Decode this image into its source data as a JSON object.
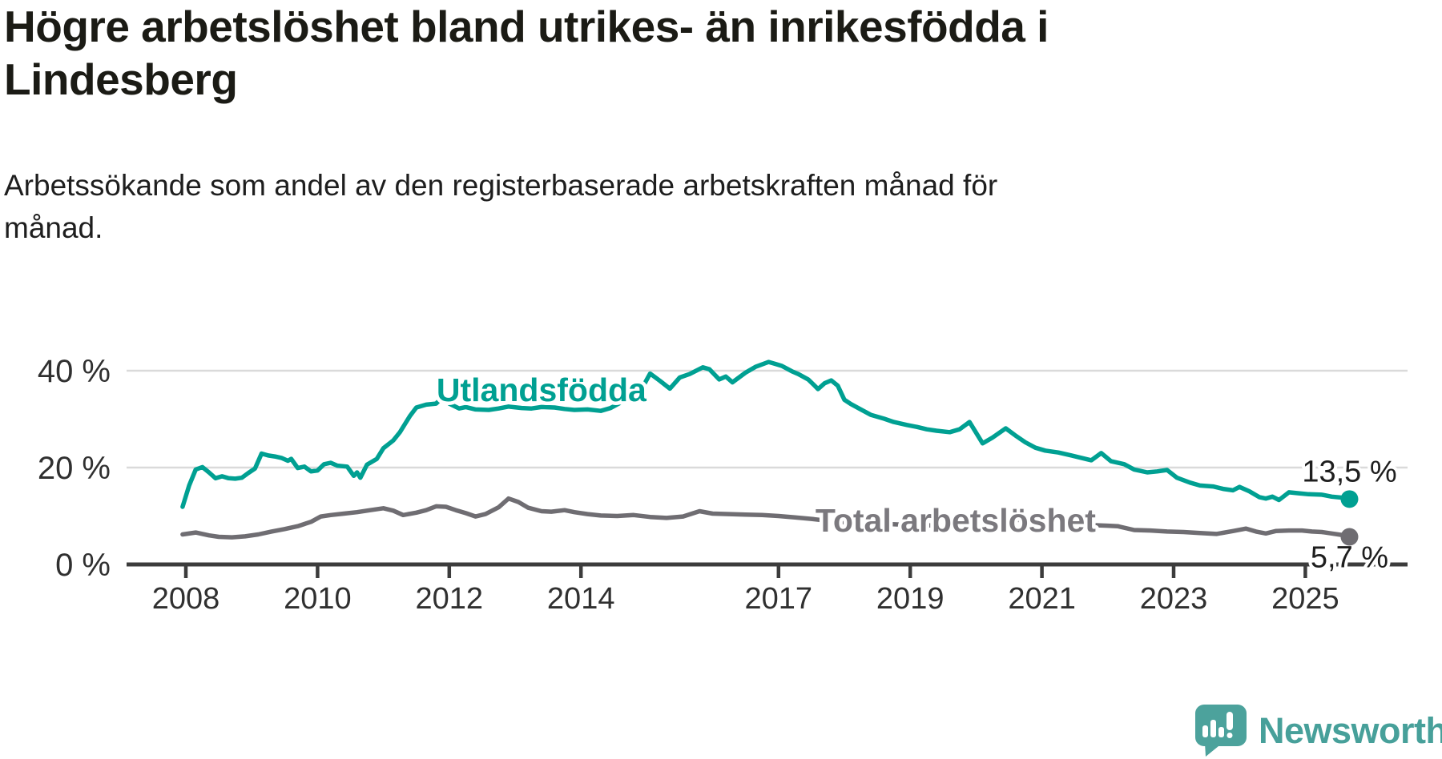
{
  "header": {
    "title": "Högre arbetslöshet bland utrikes- än inrikesfödda i Lindesberg",
    "title_lines": [
      "Högre arbetslöshet bland utrikes- än inrikesfödda i",
      "Lindesberg"
    ],
    "subtitle": "Arbetssökande som andel av den registerbaserade arbetskraften månad för månad.",
    "subtitle_lines": [
      "Arbetssökande som andel av den registerbaserade arbetskraften månad för",
      "månad."
    ]
  },
  "footer": {
    "brand": "Newsworthy"
  },
  "colors": {
    "title_text": "#1b1b15",
    "grid": "#dadada",
    "axis": "#3c3c3c",
    "axis_text": "#303030",
    "value_label_text": "#1e1e1e",
    "utlandsfodda_teal": "#00a092",
    "total_gray": "#6f6d72",
    "total_label_gray": "#7b797e",
    "logo_teal": "#4ca29c",
    "halo": "#ffffff"
  },
  "chart_data": {
    "type": "line",
    "title": "Högre arbetslöshet bland utrikes- än inrikesfödda i Lindesberg",
    "subtitle": "Arbetssökande som andel av den registerbaserade arbetskraften månad för månad.",
    "unit": "%",
    "grid": true,
    "legend_position": "inline-labels",
    "x_axis": {
      "range": [
        2007.9,
        2025.9
      ],
      "ticks": [
        {
          "value": 2008,
          "label": "2008"
        },
        {
          "value": 2010,
          "label": "2010"
        },
        {
          "value": 2012,
          "label": "2012"
        },
        {
          "value": 2014,
          "label": "2014"
        },
        {
          "value": 2017,
          "label": "2017"
        },
        {
          "value": 2019,
          "label": "2019"
        },
        {
          "value": 2021,
          "label": "2021"
        },
        {
          "value": 2023,
          "label": "2023"
        },
        {
          "value": 2025,
          "label": "2025"
        }
      ]
    },
    "y_axis": {
      "range": [
        0,
        52
      ],
      "ticks": [
        {
          "value": 0,
          "label": "0 %"
        },
        {
          "value": 20,
          "label": "20 %"
        },
        {
          "value": 40,
          "label": "40 %"
        }
      ]
    },
    "series": [
      {
        "id": "utlandsfodda",
        "name": "Utlandsfödda",
        "color": "#00a092",
        "label_color": "#00a092",
        "label_anchor": {
          "x": 2013.4,
          "y": 36.0
        },
        "end_label": "13,5 %",
        "end_value": 13.5,
        "end_label_position": "above",
        "points": [
          [
            2007.95,
            11.9
          ],
          [
            2008.05,
            16.3
          ],
          [
            2008.15,
            19.6
          ],
          [
            2008.25,
            20.1
          ],
          [
            2008.35,
            19.0
          ],
          [
            2008.45,
            17.8
          ],
          [
            2008.55,
            18.2
          ],
          [
            2008.65,
            17.8
          ],
          [
            2008.75,
            17.7
          ],
          [
            2008.85,
            17.9
          ],
          [
            2008.95,
            18.9
          ],
          [
            2009.05,
            19.8
          ],
          [
            2009.15,
            22.9
          ],
          [
            2009.25,
            22.5
          ],
          [
            2009.35,
            22.3
          ],
          [
            2009.45,
            22.0
          ],
          [
            2009.55,
            21.4
          ],
          [
            2009.6,
            21.8
          ],
          [
            2009.7,
            19.9
          ],
          [
            2009.8,
            20.2
          ],
          [
            2009.9,
            19.2
          ],
          [
            2010.0,
            19.4
          ],
          [
            2010.1,
            20.7
          ],
          [
            2010.2,
            21.0
          ],
          [
            2010.3,
            20.4
          ],
          [
            2010.45,
            20.2
          ],
          [
            2010.55,
            18.3
          ],
          [
            2010.6,
            19.0
          ],
          [
            2010.65,
            17.9
          ],
          [
            2010.75,
            20.6
          ],
          [
            2010.9,
            21.8
          ],
          [
            2011.0,
            24.0
          ],
          [
            2011.15,
            25.6
          ],
          [
            2011.25,
            27.3
          ],
          [
            2011.4,
            30.6
          ],
          [
            2011.5,
            32.4
          ],
          [
            2011.65,
            33.0
          ],
          [
            2011.8,
            33.2
          ],
          [
            2011.9,
            34.6
          ],
          [
            2012.0,
            33.2
          ],
          [
            2012.15,
            32.2
          ],
          [
            2012.25,
            32.5
          ],
          [
            2012.4,
            32.0
          ],
          [
            2012.6,
            31.9
          ],
          [
            2012.75,
            32.2
          ],
          [
            2012.9,
            32.6
          ],
          [
            2013.1,
            32.3
          ],
          [
            2013.25,
            32.2
          ],
          [
            2013.4,
            32.5
          ],
          [
            2013.6,
            32.4
          ],
          [
            2013.75,
            32.1
          ],
          [
            2013.9,
            31.9
          ],
          [
            2014.1,
            32.0
          ],
          [
            2014.3,
            31.7
          ],
          [
            2014.45,
            32.3
          ],
          [
            2014.6,
            33.4
          ],
          [
            2014.75,
            34.6
          ],
          [
            2014.9,
            35.7
          ],
          [
            2015.05,
            39.4
          ],
          [
            2015.2,
            37.9
          ],
          [
            2015.35,
            36.3
          ],
          [
            2015.5,
            38.6
          ],
          [
            2015.65,
            39.3
          ],
          [
            2015.85,
            40.7
          ],
          [
            2015.95,
            40.3
          ],
          [
            2016.1,
            38.2
          ],
          [
            2016.2,
            38.8
          ],
          [
            2016.3,
            37.6
          ],
          [
            2016.5,
            39.6
          ],
          [
            2016.65,
            40.8
          ],
          [
            2016.85,
            41.8
          ],
          [
            2016.95,
            41.4
          ],
          [
            2017.05,
            41.0
          ],
          [
            2017.2,
            39.9
          ],
          [
            2017.3,
            39.3
          ],
          [
            2017.45,
            38.2
          ],
          [
            2017.55,
            36.9
          ],
          [
            2017.6,
            36.2
          ],
          [
            2017.7,
            37.4
          ],
          [
            2017.8,
            38.0
          ],
          [
            2017.9,
            36.9
          ],
          [
            2018.0,
            34.0
          ],
          [
            2018.1,
            33.1
          ],
          [
            2018.25,
            32.0
          ],
          [
            2018.4,
            30.9
          ],
          [
            2018.6,
            30.1
          ],
          [
            2018.75,
            29.4
          ],
          [
            2018.95,
            28.8
          ],
          [
            2019.1,
            28.4
          ],
          [
            2019.25,
            27.9
          ],
          [
            2019.4,
            27.6
          ],
          [
            2019.6,
            27.3
          ],
          [
            2019.75,
            27.9
          ],
          [
            2019.9,
            29.4
          ],
          [
            2020.1,
            25.0
          ],
          [
            2020.25,
            26.2
          ],
          [
            2020.45,
            28.1
          ],
          [
            2020.6,
            26.6
          ],
          [
            2020.75,
            25.2
          ],
          [
            2020.9,
            24.1
          ],
          [
            2021.05,
            23.5
          ],
          [
            2021.25,
            23.1
          ],
          [
            2021.45,
            22.5
          ],
          [
            2021.6,
            22.0
          ],
          [
            2021.75,
            21.5
          ],
          [
            2021.9,
            23.0
          ],
          [
            2022.05,
            21.3
          ],
          [
            2022.25,
            20.7
          ],
          [
            2022.4,
            19.6
          ],
          [
            2022.6,
            19.0
          ],
          [
            2022.75,
            19.2
          ],
          [
            2022.9,
            19.5
          ],
          [
            2023.05,
            17.9
          ],
          [
            2023.25,
            16.9
          ],
          [
            2023.4,
            16.3
          ],
          [
            2023.6,
            16.1
          ],
          [
            2023.75,
            15.6
          ],
          [
            2023.9,
            15.3
          ],
          [
            2024.0,
            16.0
          ],
          [
            2024.15,
            15.1
          ],
          [
            2024.3,
            13.9
          ],
          [
            2024.4,
            13.6
          ],
          [
            2024.5,
            14.0
          ],
          [
            2024.6,
            13.3
          ],
          [
            2024.75,
            14.9
          ],
          [
            2024.9,
            14.7
          ],
          [
            2025.05,
            14.5
          ],
          [
            2025.25,
            14.4
          ],
          [
            2025.4,
            14.0
          ],
          [
            2025.55,
            13.8
          ],
          [
            2025.67,
            13.5
          ]
        ]
      },
      {
        "id": "total-arbetsloshet",
        "name": "Total arbetslöshet",
        "color": "#6f6d72",
        "label_color": "#7b797e",
        "label_anchor": {
          "x": 2019.69,
          "y": 9.1
        },
        "end_label": "5,7 %",
        "end_value": 5.7,
        "end_label_position": "below",
        "points": [
          [
            2007.95,
            6.2
          ],
          [
            2008.15,
            6.6
          ],
          [
            2008.35,
            6.0
          ],
          [
            2008.5,
            5.7
          ],
          [
            2008.7,
            5.6
          ],
          [
            2008.9,
            5.8
          ],
          [
            2009.1,
            6.2
          ],
          [
            2009.3,
            6.8
          ],
          [
            2009.5,
            7.3
          ],
          [
            2009.7,
            7.9
          ],
          [
            2009.9,
            8.8
          ],
          [
            2010.05,
            9.9
          ],
          [
            2010.2,
            10.2
          ],
          [
            2010.4,
            10.5
          ],
          [
            2010.6,
            10.8
          ],
          [
            2010.8,
            11.2
          ],
          [
            2011.0,
            11.6
          ],
          [
            2011.15,
            11.1
          ],
          [
            2011.3,
            10.2
          ],
          [
            2011.5,
            10.7
          ],
          [
            2011.65,
            11.2
          ],
          [
            2011.8,
            12.0
          ],
          [
            2011.95,
            11.9
          ],
          [
            2012.1,
            11.2
          ],
          [
            2012.25,
            10.6
          ],
          [
            2012.4,
            9.9
          ],
          [
            2012.55,
            10.4
          ],
          [
            2012.75,
            11.8
          ],
          [
            2012.9,
            13.6
          ],
          [
            2013.05,
            12.9
          ],
          [
            2013.2,
            11.7
          ],
          [
            2013.4,
            11.0
          ],
          [
            2013.55,
            10.9
          ],
          [
            2013.75,
            11.2
          ],
          [
            2013.9,
            10.8
          ],
          [
            2014.1,
            10.4
          ],
          [
            2014.3,
            10.1
          ],
          [
            2014.55,
            10.0
          ],
          [
            2014.8,
            10.2
          ],
          [
            2015.05,
            9.8
          ],
          [
            2015.3,
            9.6
          ],
          [
            2015.55,
            9.9
          ],
          [
            2015.8,
            11.0
          ],
          [
            2016.0,
            10.5
          ],
          [
            2016.25,
            10.4
          ],
          [
            2016.5,
            10.3
          ],
          [
            2016.75,
            10.2
          ],
          [
            2017.0,
            10.0
          ],
          [
            2017.25,
            9.7
          ],
          [
            2017.5,
            9.4
          ],
          [
            2017.75,
            9.0
          ],
          [
            2018.0,
            8.7
          ],
          [
            2018.3,
            8.5
          ],
          [
            2018.6,
            8.4
          ],
          [
            2018.9,
            8.2
          ],
          [
            2019.2,
            8.1
          ],
          [
            2019.5,
            8.0
          ],
          [
            2019.8,
            8.1
          ],
          [
            2020.1,
            8.5
          ],
          [
            2020.3,
            9.0
          ],
          [
            2020.5,
            9.3
          ],
          [
            2020.75,
            9.1
          ],
          [
            2021.0,
            8.8
          ],
          [
            2021.3,
            8.6
          ],
          [
            2021.55,
            8.3
          ],
          [
            2021.8,
            8.1
          ],
          [
            2022.0,
            8.0
          ],
          [
            2022.15,
            7.9
          ],
          [
            2022.4,
            7.1
          ],
          [
            2022.65,
            7.0
          ],
          [
            2022.9,
            6.8
          ],
          [
            2023.15,
            6.7
          ],
          [
            2023.4,
            6.5
          ],
          [
            2023.65,
            6.3
          ],
          [
            2023.9,
            6.9
          ],
          [
            2024.1,
            7.4
          ],
          [
            2024.25,
            6.8
          ],
          [
            2024.4,
            6.4
          ],
          [
            2024.55,
            6.9
          ],
          [
            2024.75,
            7.0
          ],
          [
            2024.95,
            7.0
          ],
          [
            2025.1,
            6.8
          ],
          [
            2025.25,
            6.7
          ],
          [
            2025.4,
            6.4
          ],
          [
            2025.55,
            6.1
          ],
          [
            2025.67,
            5.7
          ]
        ]
      }
    ]
  }
}
